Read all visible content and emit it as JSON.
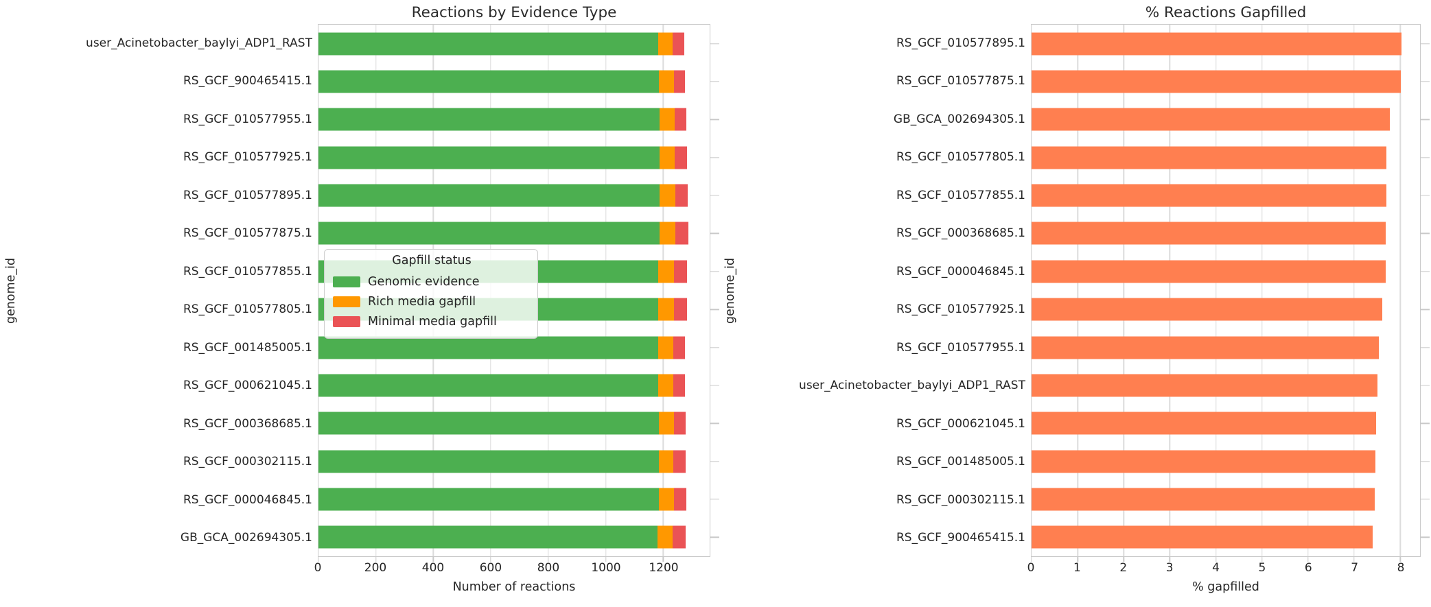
{
  "figure": {
    "background": "#ffffff"
  },
  "colors": {
    "genomic_evidence": "#4CAF50",
    "rich_media_gapfill": "#FF9800",
    "minimal_media_gapfill": "#EA5355",
    "pct_gapfilled_bar": "#FF7F50",
    "grid": "#dcdcdc",
    "spine": "#c9c9c9"
  },
  "chart_data": [
    {
      "type": "bar",
      "orientation": "horizontal",
      "stacked": true,
      "title": "Reactions by Evidence Type",
      "xlabel": "Number of reactions",
      "ylabel": "genome_id",
      "xlim": [
        0,
        1362
      ],
      "xticks": [
        0,
        200,
        400,
        600,
        800,
        1000,
        1200
      ],
      "grid": true,
      "legend": {
        "title": "Gapfill status",
        "position": "center-left-overlay",
        "entries": [
          {
            "label": "Genomic evidence",
            "color": "#4CAF50"
          },
          {
            "label": "Rich media gapfill",
            "color": "#FF9800"
          },
          {
            "label": "Minimal media gapfill",
            "color": "#EA5355"
          }
        ]
      },
      "categories": [
        "user_Acinetobacter_baylyi_ADP1_RAST",
        "RS_GCF_900465415.1",
        "RS_GCF_010577955.1",
        "RS_GCF_010577925.1",
        "RS_GCF_010577895.1",
        "RS_GCF_010577875.1",
        "RS_GCF_010577855.1",
        "RS_GCF_010577805.1",
        "RS_GCF_001485005.1",
        "RS_GCF_000621045.1",
        "RS_GCF_000368685.1",
        "RS_GCF_000302115.1",
        "RS_GCF_000046845.1",
        "GB_GCA_002694305.1"
      ],
      "series": [
        {
          "name": "Genomic evidence",
          "color": "#4CAF50",
          "values": [
            1182,
            1186,
            1187,
            1187,
            1188,
            1188,
            1182,
            1182,
            1183,
            1183,
            1184,
            1184,
            1184,
            1180
          ]
        },
        {
          "name": "Rich media gapfill",
          "color": "#FF9800",
          "values": [
            51,
            51,
            52,
            53,
            55,
            55,
            56,
            56,
            52,
            52,
            53,
            52,
            54,
            54
          ]
        },
        {
          "name": "Minimal media gapfill",
          "color": "#EA5355",
          "values": [
            41,
            39,
            42,
            43,
            43,
            44,
            45,
            45,
            42,
            42,
            42,
            42,
            43,
            45
          ]
        }
      ]
    },
    {
      "type": "bar",
      "orientation": "horizontal",
      "stacked": false,
      "title": "% Reactions Gapfilled",
      "xlabel": "% gapfilled",
      "ylabel": "genome_id",
      "xlim": [
        0,
        8.43
      ],
      "xticks": [
        0,
        1,
        2,
        3,
        4,
        5,
        6,
        7,
        8
      ],
      "grid": true,
      "bar_color": "#FF7F50",
      "categories": [
        "RS_GCF_010577895.1",
        "RS_GCF_010577875.1",
        "GB_GCA_002694305.1",
        "RS_GCF_010577805.1",
        "RS_GCF_010577855.1",
        "RS_GCF_000368685.1",
        "RS_GCF_000046845.1",
        "RS_GCF_010577925.1",
        "RS_GCF_010577955.1",
        "user_Acinetobacter_baylyi_ADP1_RAST",
        "RS_GCF_000621045.1",
        "RS_GCF_001485005.1",
        "RS_GCF_000302115.1",
        "RS_GCF_900465415.1"
      ],
      "values": [
        8.03,
        8.02,
        7.78,
        7.7,
        7.7,
        7.69,
        7.68,
        7.61,
        7.54,
        7.5,
        7.47,
        7.46,
        7.44,
        7.4
      ]
    }
  ]
}
